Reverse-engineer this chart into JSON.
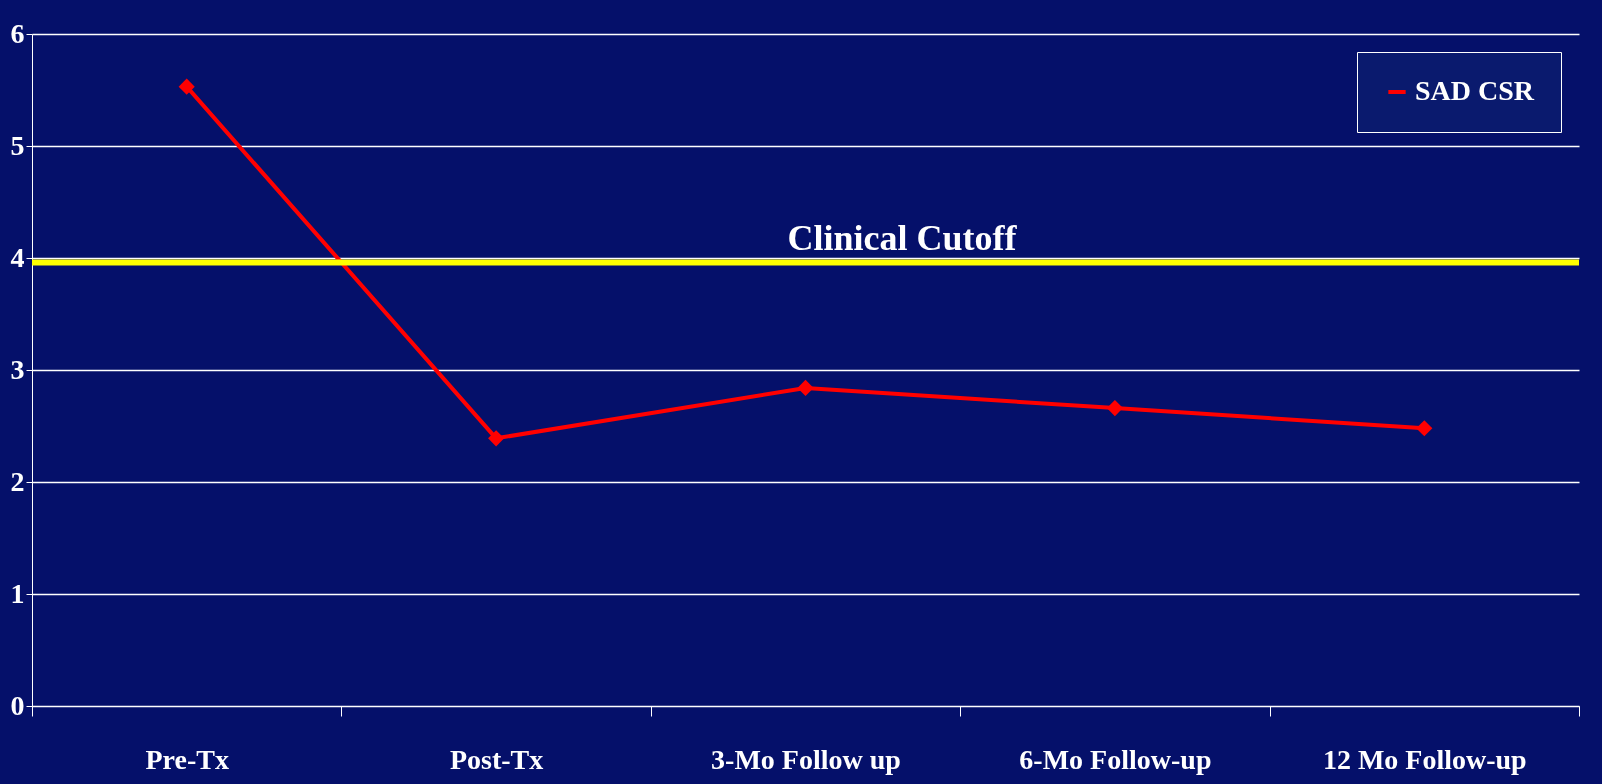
{
  "chart_data": {
    "type": "line",
    "categories": [
      "Pre-Tx",
      "Post-Tx",
      "3-Mo Follow up",
      "6-Mo Follow-up",
      "12 Mo Follow-up"
    ],
    "series": [
      {
        "name": "SAD CSR",
        "color": "#ff0000",
        "values": [
          5.53,
          2.39,
          2.84,
          2.66,
          2.48
        ]
      }
    ],
    "ylim": [
      0,
      6
    ],
    "yticks": [
      0,
      1,
      2,
      3,
      4,
      5,
      6
    ],
    "grid": "y",
    "legend": "top right",
    "marker": "diamond",
    "line_style": "solid",
    "ref_lines": [
      {
        "axis": "y",
        "value": 3.96,
        "label": "Clinical Cutoff",
        "color": "#ffff00",
        "line_style": "solid"
      }
    ]
  }
}
